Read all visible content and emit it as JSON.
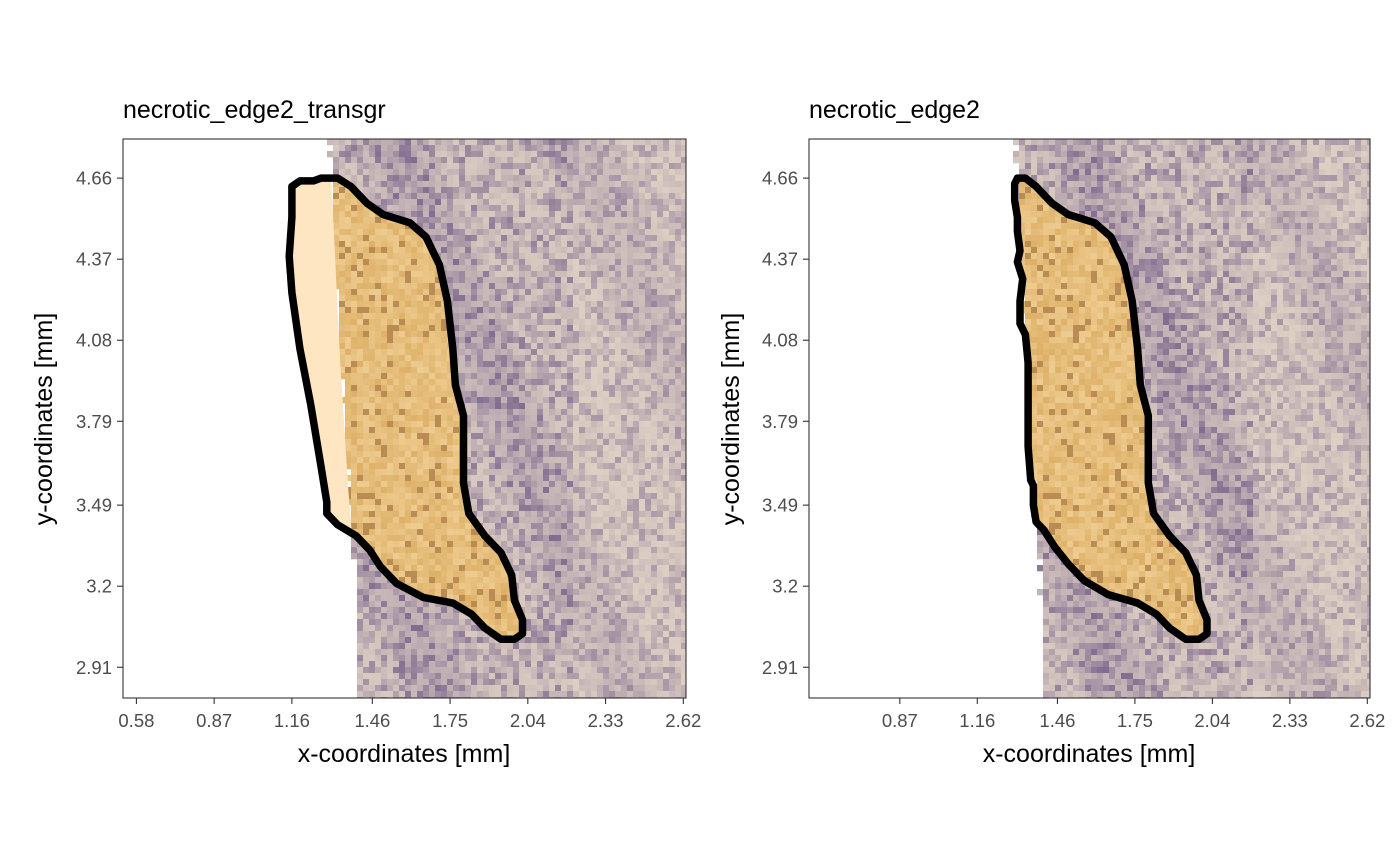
{
  "chart_data": [
    {
      "type": "heatmap",
      "title": "necrotic_edge2_transgr",
      "xlabel": "x-coordinates [mm]",
      "ylabel": "y-coordinates [mm]",
      "xlim": [
        0.53,
        2.63
      ],
      "ylim": [
        2.8,
        4.8
      ],
      "x_ticks": [
        "0.58",
        "0.87",
        "1.16",
        "1.46",
        "1.75",
        "2.04",
        "2.33",
        "2.62"
      ],
      "y_ticks": [
        "2.91",
        "3.2",
        "3.49",
        "3.79",
        "4.08",
        "4.37",
        "4.66"
      ],
      "grid": false,
      "colors": {
        "tissue_light": "#efe1cd",
        "tissue_dark": "#6e5a86",
        "region_fill": "#d9aa5e",
        "outline": "#000000"
      },
      "tissue": {
        "left_edge": [
          [
            1.3,
            4.8
          ],
          [
            1.32,
            4.4
          ],
          [
            1.34,
            4.0
          ],
          [
            1.37,
            3.55
          ],
          [
            1.4,
            3.2
          ],
          [
            1.41,
            2.8
          ]
        ],
        "right": 2.63
      },
      "transgressed_fill": "#fde6c1",
      "outline": [
        [
          1.16,
          4.63
        ],
        [
          1.16,
          4.6
        ],
        [
          1.16,
          4.52
        ],
        [
          1.15,
          4.38
        ],
        [
          1.16,
          4.25
        ],
        [
          1.19,
          4.05
        ],
        [
          1.23,
          3.85
        ],
        [
          1.27,
          3.62
        ],
        [
          1.29,
          3.5
        ],
        [
          1.29,
          3.46
        ],
        [
          1.33,
          3.42
        ],
        [
          1.4,
          3.38
        ],
        [
          1.45,
          3.33
        ],
        [
          1.49,
          3.27
        ],
        [
          1.55,
          3.21
        ],
        [
          1.65,
          3.16
        ],
        [
          1.76,
          3.14
        ],
        [
          1.83,
          3.1
        ],
        [
          1.88,
          3.05
        ],
        [
          1.94,
          3.01
        ],
        [
          1.99,
          3.01
        ],
        [
          2.02,
          3.03
        ],
        [
          2.02,
          3.08
        ],
        [
          1.99,
          3.15
        ],
        [
          1.98,
          3.24
        ],
        [
          1.94,
          3.32
        ],
        [
          1.88,
          3.38
        ],
        [
          1.82,
          3.46
        ],
        [
          1.8,
          3.57
        ],
        [
          1.8,
          3.81
        ],
        [
          1.77,
          3.92
        ],
        [
          1.76,
          4.05
        ],
        [
          1.74,
          4.22
        ],
        [
          1.71,
          4.35
        ],
        [
          1.66,
          4.45
        ],
        [
          1.6,
          4.5
        ],
        [
          1.5,
          4.53
        ],
        [
          1.44,
          4.57
        ],
        [
          1.38,
          4.63
        ],
        [
          1.33,
          4.66
        ],
        [
          1.27,
          4.66
        ],
        [
          1.24,
          4.65
        ],
        [
          1.19,
          4.65
        ]
      ]
    },
    {
      "type": "heatmap",
      "title": "necrotic_edge2",
      "xlabel": "x-coordinates [mm]",
      "ylabel": "y-coordinates [mm]",
      "xlim": [
        0.53,
        2.63
      ],
      "ylim": [
        2.8,
        4.8
      ],
      "x_ticks": [
        "0.87",
        "1.16",
        "1.46",
        "1.75",
        "2.04",
        "2.33",
        "2.62"
      ],
      "y_ticks": [
        "2.91",
        "3.2",
        "3.49",
        "3.79",
        "4.08",
        "4.37",
        "4.66"
      ],
      "grid": false,
      "colors": {
        "tissue_light": "#efe1cd",
        "tissue_dark": "#6e5a86",
        "region_fill": "#d9aa5e",
        "outline": "#000000"
      },
      "tissue": {
        "left_edge": [
          [
            1.3,
            4.8
          ],
          [
            1.32,
            4.4
          ],
          [
            1.34,
            4.0
          ],
          [
            1.37,
            3.55
          ],
          [
            1.4,
            3.2
          ],
          [
            1.41,
            2.8
          ]
        ],
        "right": 2.63
      },
      "transgressed_fill": "",
      "outline": [
        [
          1.3,
          4.64
        ],
        [
          1.3,
          4.58
        ],
        [
          1.31,
          4.52
        ],
        [
          1.31,
          4.47
        ],
        [
          1.32,
          4.4
        ],
        [
          1.31,
          4.36
        ],
        [
          1.33,
          4.3
        ],
        [
          1.32,
          4.22
        ],
        [
          1.32,
          4.14
        ],
        [
          1.34,
          4.1
        ],
        [
          1.35,
          4.0
        ],
        [
          1.35,
          3.85
        ],
        [
          1.35,
          3.7
        ],
        [
          1.36,
          3.58
        ],
        [
          1.37,
          3.56
        ],
        [
          1.37,
          3.49
        ],
        [
          1.38,
          3.43
        ],
        [
          1.41,
          3.4
        ],
        [
          1.45,
          3.34
        ],
        [
          1.5,
          3.28
        ],
        [
          1.56,
          3.22
        ],
        [
          1.65,
          3.17
        ],
        [
          1.76,
          3.14
        ],
        [
          1.83,
          3.1
        ],
        [
          1.88,
          3.05
        ],
        [
          1.94,
          3.01
        ],
        [
          1.99,
          3.01
        ],
        [
          2.02,
          3.03
        ],
        [
          2.02,
          3.08
        ],
        [
          1.99,
          3.15
        ],
        [
          1.98,
          3.24
        ],
        [
          1.94,
          3.32
        ],
        [
          1.88,
          3.38
        ],
        [
          1.82,
          3.46
        ],
        [
          1.8,
          3.57
        ],
        [
          1.8,
          3.81
        ],
        [
          1.77,
          3.92
        ],
        [
          1.76,
          4.05
        ],
        [
          1.74,
          4.22
        ],
        [
          1.71,
          4.35
        ],
        [
          1.66,
          4.45
        ],
        [
          1.6,
          4.5
        ],
        [
          1.5,
          4.53
        ],
        [
          1.44,
          4.57
        ],
        [
          1.38,
          4.63
        ],
        [
          1.34,
          4.66
        ],
        [
          1.31,
          4.66
        ]
      ]
    }
  ]
}
